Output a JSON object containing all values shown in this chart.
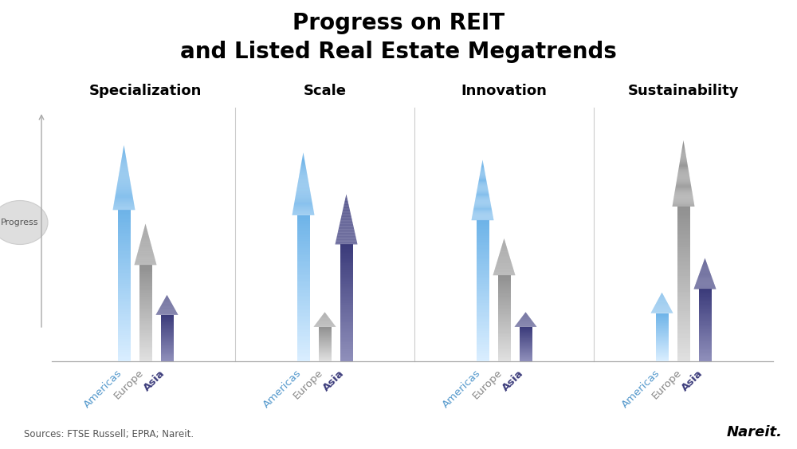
{
  "title_line1": "Progress on REIT",
  "title_line2": "and Listed Real Estate Megatrends",
  "categories": [
    "Specialization",
    "Scale",
    "Innovation",
    "Sustainability"
  ],
  "regions": [
    "Americas",
    "Europe",
    "Asia"
  ],
  "source_text": "Sources: FTSE Russell; EPRA; Nareit.",
  "nareit_text": "Nareit.",
  "progress_label": "Progress",
  "background_color": "#ffffff",
  "arrow_heights": {
    "Specialization": [
      0.88,
      0.56,
      0.27
    ],
    "Scale": [
      0.85,
      0.2,
      0.68
    ],
    "Innovation": [
      0.82,
      0.5,
      0.2
    ],
    "Sustainability": [
      0.28,
      0.9,
      0.42
    ]
  },
  "colors_top": {
    "Americas": "#6db3e8",
    "Europe": "#909090",
    "Asia": "#3a3a7a"
  },
  "colors_bottom": {
    "Americas": "#daeeff",
    "Europe": "#e0e0e0",
    "Asia": "#9090bb"
  },
  "label_colors": {
    "Americas": "#5599cc",
    "Europe": "#888888",
    "Asia": "#3a3a7a"
  },
  "title_fontsize": 20,
  "category_fontsize": 13,
  "label_fontsize": 9.5,
  "source_fontsize": 8.5,
  "nareit_fontsize": 13
}
